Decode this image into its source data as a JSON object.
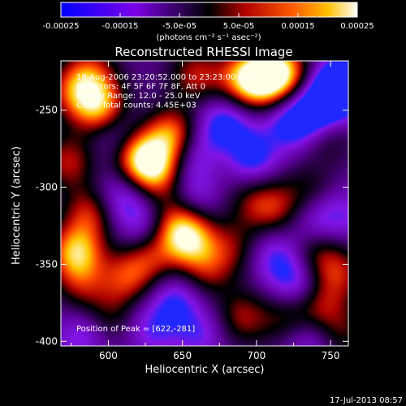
{
  "chart_data": {
    "type": "heatmap",
    "title": "Reconstructed RHESSI Image",
    "xlabel": "Heliocentric X (arcsec)",
    "ylabel": "Heliocentric Y (arcsec)",
    "xlim": [
      568,
      762
    ],
    "ylim": [
      -403,
      -218
    ],
    "xticks": [
      600,
      650,
      700,
      750
    ],
    "yticks": [
      -250,
      -300,
      -350,
      -400
    ],
    "colorbar": {
      "label": "(photons cm⁻² s⁻¹ asec⁻²)",
      "range": [
        -0.00025,
        0.00025
      ],
      "ticks": [
        "-0.00025",
        "-0.00015",
        "-5.0e-05",
        "5.0e-05",
        "0.00015",
        "0.00025"
      ]
    },
    "annotations": [
      "18-Aug-2006 23:20:52.000 to 23:23:00.000",
      "Detectors: 4F 5F 6F 7F 8F, Att 0",
      "Energy Range: 12.0 - 25.0 keV",
      "Clean     Total counts: 4.45E+03"
    ],
    "peak_text": "Position of Peak = [622,-281]",
    "peak": {
      "x": 622,
      "y": -281
    },
    "timestamp": "17-Jul-2013 08:57",
    "blobs": [
      {
        "x": 622,
        "y": -281,
        "v": 1.0
      },
      {
        "x": 643,
        "y": -266,
        "v": 0.8
      },
      {
        "x": 634,
        "y": -292,
        "v": 0.6
      },
      {
        "x": 703,
        "y": -229,
        "v": 0.9
      },
      {
        "x": 718,
        "y": -226,
        "v": 0.85
      },
      {
        "x": 690,
        "y": -230,
        "v": 0.6
      },
      {
        "x": 595,
        "y": -249,
        "v": 0.85
      },
      {
        "x": 578,
        "y": -238,
        "v": 0.6
      },
      {
        "x": 573,
        "y": -283,
        "v": 0.55
      },
      {
        "x": 659,
        "y": -227,
        "v": 0.55
      },
      {
        "x": 588,
        "y": -225,
        "v": 0.5
      },
      {
        "x": 578,
        "y": -342,
        "v": 0.9
      },
      {
        "x": 588,
        "y": -316,
        "v": 0.6
      },
      {
        "x": 582,
        "y": -364,
        "v": 0.4
      },
      {
        "x": 612,
        "y": -359,
        "v": 0.55
      },
      {
        "x": 628,
        "y": -346,
        "v": 0.5
      },
      {
        "x": 654,
        "y": -333,
        "v": 0.9
      },
      {
        "x": 643,
        "y": -322,
        "v": 0.5
      },
      {
        "x": 666,
        "y": -354,
        "v": 0.45
      },
      {
        "x": 714,
        "y": -314,
        "v": 0.45
      },
      {
        "x": 698,
        "y": -309,
        "v": 0.4
      },
      {
        "x": 684,
        "y": -339,
        "v": 0.4
      },
      {
        "x": 690,
        "y": -384,
        "v": 0.5
      },
      {
        "x": 720,
        "y": -385,
        "v": 0.4
      },
      {
        "x": 600,
        "y": -385,
        "v": 0.35
      },
      {
        "x": 740,
        "y": -342,
        "v": 0.45
      },
      {
        "x": 755,
        "y": -356,
        "v": 0.5
      },
      {
        "x": 742,
        "y": -378,
        "v": 0.5
      },
      {
        "x": 748,
        "y": -266,
        "v": 0.35
      },
      {
        "x": 735,
        "y": -301,
        "v": 0.3
      },
      {
        "x": 672,
        "y": -283,
        "v": 0.25
      },
      {
        "x": 758,
        "y": -395,
        "v": 0.35
      }
    ],
    "dips": [
      {
        "x": 757,
        "y": -234,
        "v": -1.0
      },
      {
        "x": 742,
        "y": -249,
        "v": -0.7
      },
      {
        "x": 724,
        "y": -258,
        "v": -0.55
      },
      {
        "x": 678,
        "y": -258,
        "v": -0.55
      },
      {
        "x": 660,
        "y": -279,
        "v": -0.5
      },
      {
        "x": 696,
        "y": -281,
        "v": -0.55
      },
      {
        "x": 608,
        "y": -306,
        "v": -0.45
      },
      {
        "x": 624,
        "y": -324,
        "v": -0.4
      },
      {
        "x": 658,
        "y": -304,
        "v": -0.35
      },
      {
        "x": 604,
        "y": -264,
        "v": -0.35
      },
      {
        "x": 712,
        "y": -344,
        "v": -0.4
      },
      {
        "x": 727,
        "y": -362,
        "v": -0.5
      },
      {
        "x": 738,
        "y": -323,
        "v": -0.35
      },
      {
        "x": 645,
        "y": -372,
        "v": -0.45
      },
      {
        "x": 628,
        "y": -392,
        "v": -0.35
      },
      {
        "x": 662,
        "y": -395,
        "v": -0.35
      },
      {
        "x": 583,
        "y": -396,
        "v": -0.4
      },
      {
        "x": 735,
        "y": -398,
        "v": -0.4
      },
      {
        "x": 757,
        "y": -318,
        "v": -0.3
      }
    ]
  }
}
